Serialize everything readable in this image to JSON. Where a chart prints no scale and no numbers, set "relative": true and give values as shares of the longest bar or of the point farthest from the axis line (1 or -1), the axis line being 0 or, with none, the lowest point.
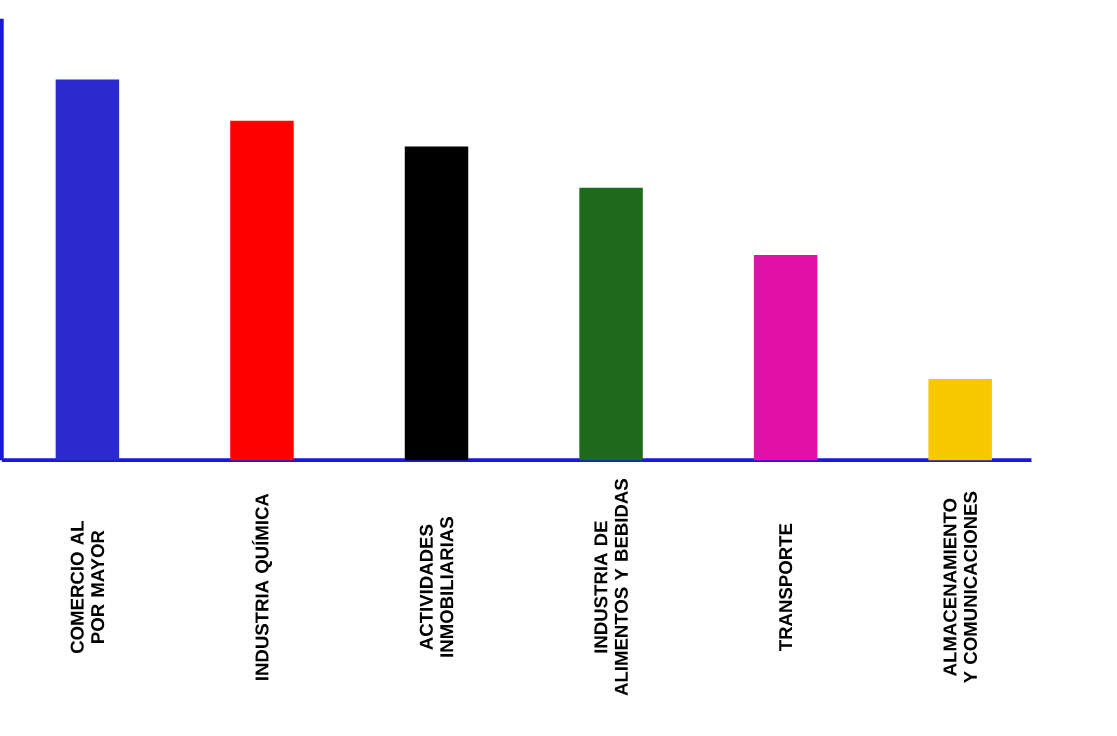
{
  "chart_data": {
    "type": "bar",
    "relative": true,
    "categories": [
      "COMERCIO AL POR MAYOR",
      "INDUSTRIA QUÍMICA",
      "ACTIVIDADES INMOBILIARIAS",
      "INDUSTRIA DE ALIMENTOS Y BEBIDAS",
      "TRANSPORTE",
      "ALMACENAMIENTO Y COMUNICACIONES"
    ],
    "values": [
      1,
      0.892,
      0.824,
      0.716,
      0.539,
      0.213
    ],
    "colors": [
      "#2a2ad0",
      "#ff0000",
      "#000000",
      "#1e6b1e",
      "#e010a8",
      "#f8c800"
    ]
  }
}
